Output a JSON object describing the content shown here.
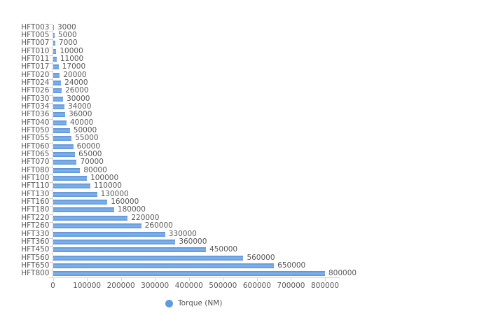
{
  "chart_data": {
    "type": "bar",
    "orientation": "horizontal",
    "categories": [
      "HFT003",
      "HFT005",
      "HFT007",
      "HFT010",
      "HFT011",
      "HFT017",
      "HFT020",
      "HFT024",
      "HFT026",
      "HFT030",
      "HFT034",
      "HFT036",
      "HFT040",
      "HFT050",
      "HFT055",
      "HFT060",
      "HFT065",
      "HFT070",
      "HFT080",
      "HFT100",
      "HFT110",
      "HFT130",
      "HFT160",
      "HFT180",
      "HFT220",
      "HFT260",
      "HFT330",
      "HFT360",
      "HFT450",
      "HFT560",
      "HFT650",
      "HFT800"
    ],
    "values": [
      3000,
      5000,
      7000,
      10000,
      11000,
      17000,
      20000,
      24000,
      26000,
      30000,
      34000,
      36000,
      40000,
      50000,
      55000,
      60000,
      65000,
      70000,
      80000,
      100000,
      110000,
      130000,
      160000,
      180000,
      220000,
      260000,
      330000,
      360000,
      450000,
      560000,
      650000,
      800000
    ],
    "series_name": "Torque (NM)",
    "title": "",
    "xlabel": "",
    "ylabel": "",
    "xlim": [
      0,
      800000
    ],
    "x_ticks": [
      0,
      100000,
      200000,
      300000,
      400000,
      500000,
      600000,
      700000,
      800000
    ],
    "data_labels": true,
    "grid": false,
    "legend_position": "bottom-center",
    "colors": {
      "bar_light": "#7db0ec",
      "bar_dark": "#5b92d9",
      "bar_mid": "#5f9be2",
      "axis": "#d4d4d4",
      "text": "#595959"
    }
  }
}
